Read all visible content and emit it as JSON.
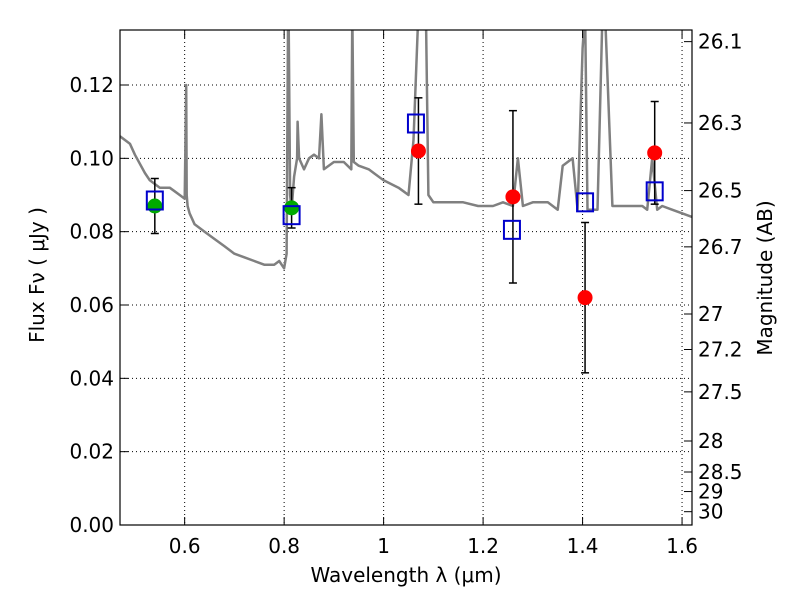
{
  "chart_data": {
    "type": "scatter",
    "title": "",
    "xlabel": "Wavelength  λ (μm)",
    "ylabel": "Flux  Fν  ( μJy )",
    "ylabel_right": "Magnitude (AB)",
    "xlim": [
      0.47,
      1.62
    ],
    "ylim": [
      0.0,
      0.135
    ],
    "grid": true,
    "x_ticks": [
      0.6,
      0.8,
      1.0,
      1.2,
      1.4,
      1.6
    ],
    "x_tick_labels": [
      "0.6",
      "0.8",
      "1",
      "1.2",
      "1.4",
      "1.6"
    ],
    "y_ticks": [
      0.0,
      0.02,
      0.04,
      0.06,
      0.08,
      0.1,
      0.12
    ],
    "y_tick_labels": [
      "0.00",
      "0.02",
      "0.04",
      "0.06",
      "0.08",
      "0.10",
      "0.12"
    ],
    "right_axis_labels": [
      "26.1",
      "26.3",
      "26.5",
      "26.7",
      "27",
      "27.2",
      "27.5",
      "28",
      "28.5",
      "29",
      "30"
    ],
    "right_axis_values": [
      26.1,
      26.3,
      26.5,
      26.7,
      27.0,
      27.2,
      27.5,
      28.0,
      28.5,
      29.0,
      30.0
    ],
    "sed_model": {
      "name": "model spectrum",
      "color": "#808080",
      "x": [
        0.47,
        0.49,
        0.5,
        0.52,
        0.53,
        0.55,
        0.57,
        0.58,
        0.59,
        0.6,
        0.603,
        0.604,
        0.606,
        0.61,
        0.62,
        0.64,
        0.66,
        0.68,
        0.7,
        0.72,
        0.74,
        0.76,
        0.78,
        0.79,
        0.8,
        0.805,
        0.808,
        0.809,
        0.812,
        0.815,
        0.82,
        0.826,
        0.827,
        0.83,
        0.84,
        0.85,
        0.86,
        0.87,
        0.875,
        0.88,
        0.9,
        0.92,
        0.935,
        0.937,
        0.94,
        0.95,
        0.97,
        0.98,
        1.0,
        1.03,
        1.04,
        1.05,
        1.06,
        1.07,
        1.075,
        1.085,
        1.09,
        1.1,
        1.13,
        1.16,
        1.19,
        1.22,
        1.24,
        1.26,
        1.27,
        1.28,
        1.3,
        1.33,
        1.35,
        1.36,
        1.38,
        1.39,
        1.4,
        1.405,
        1.41,
        1.43,
        1.44,
        1.445,
        1.46,
        1.5,
        1.52,
        1.53,
        1.54,
        1.55,
        1.56,
        1.58,
        1.6,
        1.62
      ],
      "y": [
        0.106,
        0.104,
        0.101,
        0.096,
        0.094,
        0.092,
        0.092,
        0.091,
        0.09,
        0.089,
        0.12,
        0.09,
        0.087,
        0.085,
        0.082,
        0.08,
        0.078,
        0.076,
        0.074,
        0.073,
        0.072,
        0.071,
        0.071,
        0.072,
        0.07,
        0.074,
        0.14,
        0.14,
        0.09,
        0.086,
        0.095,
        0.1,
        0.11,
        0.1,
        0.097,
        0.1,
        0.101,
        0.1,
        0.112,
        0.097,
        0.099,
        0.099,
        0.097,
        0.14,
        0.099,
        0.098,
        0.097,
        0.096,
        0.094,
        0.092,
        0.091,
        0.09,
        0.105,
        0.14,
        0.14,
        0.14,
        0.09,
        0.088,
        0.088,
        0.088,
        0.087,
        0.087,
        0.088,
        0.087,
        0.1,
        0.087,
        0.088,
        0.088,
        0.086,
        0.098,
        0.1,
        0.086,
        0.13,
        0.14,
        0.086,
        0.086,
        0.14,
        0.14,
        0.087,
        0.087,
        0.087,
        0.086,
        0.1,
        0.086,
        0.087,
        0.086,
        0.085,
        0.084
      ]
    },
    "series": [
      {
        "name": "observed (green)",
        "marker": "circle",
        "color": "#00aa00",
        "x": [
          0.54,
          0.815
        ],
        "y": [
          0.087,
          0.0865
        ],
        "err": [
          0.0075,
          0.0055
        ]
      },
      {
        "name": "observed (red)",
        "marker": "circle",
        "color": "#ff0000",
        "x": [
          1.07,
          1.26,
          1.405,
          1.545
        ],
        "y": [
          0.102,
          0.0895,
          0.062,
          0.1015
        ],
        "err": [
          0.0145,
          0.0235,
          0.0205,
          0.014
        ]
      },
      {
        "name": "model photometry",
        "marker": "square-open",
        "color": "#0000cc",
        "x": [
          0.54,
          0.815,
          1.065,
          1.258,
          1.405,
          1.545
        ],
        "y": [
          0.0885,
          0.0845,
          0.1095,
          0.0805,
          0.088,
          0.091
        ]
      }
    ]
  }
}
